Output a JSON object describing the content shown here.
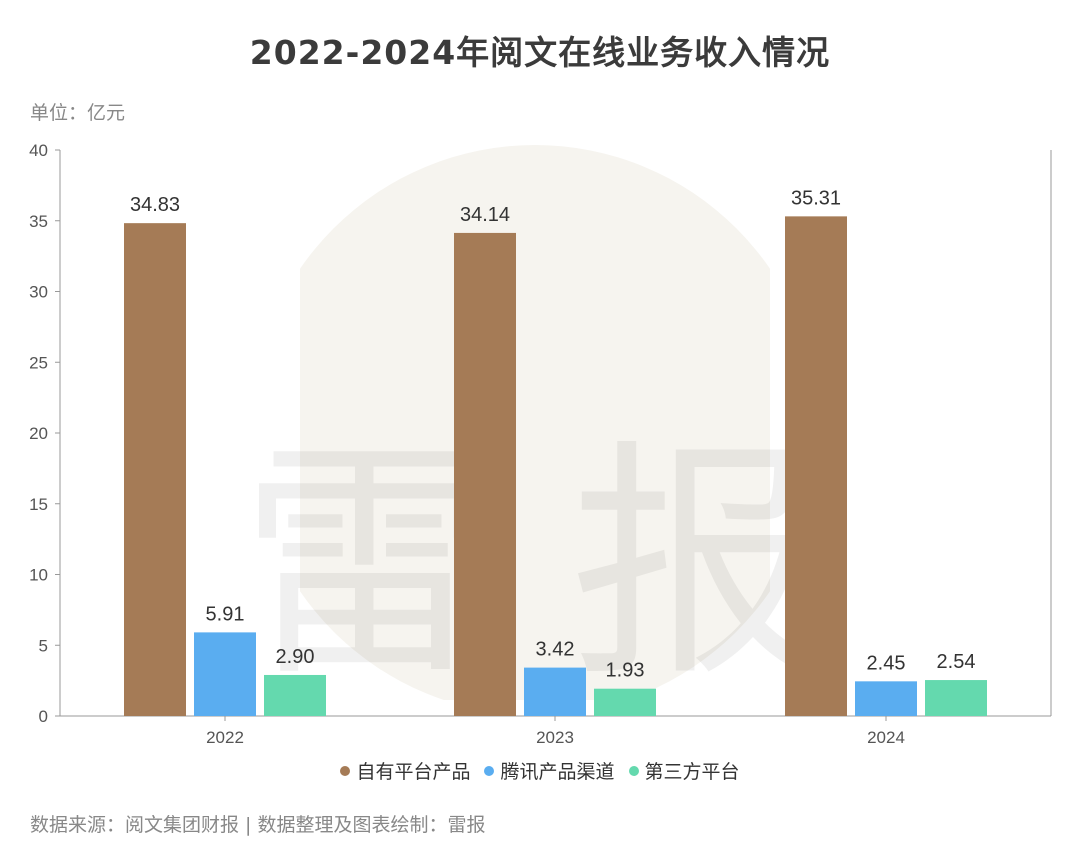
{
  "title": "2022-2024年阅文在线业务收入情况",
  "unit_label": "单位：亿元",
  "source": "数据来源：阅文集团财报 | 数据整理及图表绘制：雷报",
  "watermark": {
    "char1": "雷",
    "char2": "报"
  },
  "chart_data": {
    "type": "bar",
    "title": "2022-2024年阅文在线业务收入情况",
    "xlabel": "",
    "ylabel": "单位：亿元",
    "categories": [
      "2022",
      "2023",
      "2024"
    ],
    "ylim": [
      0,
      40
    ],
    "yticks": [
      0,
      5,
      10,
      15,
      20,
      25,
      30,
      35,
      40
    ],
    "grid": false,
    "legend_position": "bottom",
    "series": [
      {
        "name": "自有平台产品",
        "color": "#A57B56",
        "values": [
          34.83,
          34.14,
          35.31
        ],
        "labels": [
          "34.83",
          "34.14",
          "35.31"
        ]
      },
      {
        "name": "腾讯产品渠道",
        "color": "#5AADF0",
        "values": [
          5.91,
          3.42,
          2.45
        ],
        "labels": [
          "5.91",
          "3.42",
          "2.45"
        ]
      },
      {
        "name": "第三方平台",
        "color": "#64D9AE",
        "values": [
          2.9,
          1.93,
          2.54
        ],
        "labels": [
          "2.90",
          "1.93",
          "2.54"
        ]
      }
    ]
  }
}
